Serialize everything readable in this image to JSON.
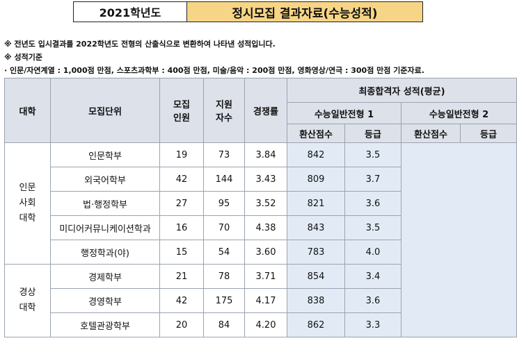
{
  "title": {
    "year": "2021학년도",
    "main": "정시모집 결과자료(수능성적)"
  },
  "notes": {
    "line1": "※ 전년도 입시결과를 2022학년도 전형의 산출식으로 변환하여 나타낸 성적입니다.",
    "line2": "※ 성적기준",
    "line3": "· 인문/자연계열 : 1,000점 만점, 스포츠과학부 : 400점 만점, 미술/음악 : 200점 만점, 영화영상/연극 : 300점 만점 기준자료."
  },
  "headers": {
    "college": "대학",
    "unit": "모집단위",
    "quota": "모집\n인원",
    "applicants": "지원\n자수",
    "ratio": "경쟁률",
    "final_scores": "최종합격자 성적(평균)",
    "type1": "수능일반전형 1",
    "type2": "수능일반전형 2",
    "converted": "환산점수",
    "grade": "등급"
  },
  "groups": [
    {
      "college": "인문\n사회\n대학",
      "rows": [
        {
          "unit": "인문학부",
          "quota": "19",
          "applicants": "73",
          "ratio": "3.84",
          "score1": "842",
          "grade1": "3.5"
        },
        {
          "unit": "외국어학부",
          "quota": "42",
          "applicants": "144",
          "ratio": "3.43",
          "score1": "809",
          "grade1": "3.7"
        },
        {
          "unit": "법·행정학부",
          "quota": "27",
          "applicants": "95",
          "ratio": "3.52",
          "score1": "821",
          "grade1": "3.6"
        },
        {
          "unit": "미디어커뮤니케이션학과",
          "quota": "16",
          "applicants": "70",
          "ratio": "4.38",
          "score1": "843",
          "grade1": "3.5"
        },
        {
          "unit": "행정학과(야)",
          "quota": "15",
          "applicants": "54",
          "ratio": "3.60",
          "score1": "783",
          "grade1": "4.0"
        }
      ]
    },
    {
      "college": "경상\n대학",
      "rows": [
        {
          "unit": "경제학부",
          "quota": "21",
          "applicants": "78",
          "ratio": "3.71",
          "score1": "854",
          "grade1": "3.4"
        },
        {
          "unit": "경영학부",
          "quota": "42",
          "applicants": "175",
          "ratio": "4.17",
          "score1": "838",
          "grade1": "3.6"
        },
        {
          "unit": "호텔관광학부",
          "quota": "20",
          "applicants": "84",
          "ratio": "4.20",
          "score1": "862",
          "grade1": "3.3"
        }
      ]
    }
  ]
}
